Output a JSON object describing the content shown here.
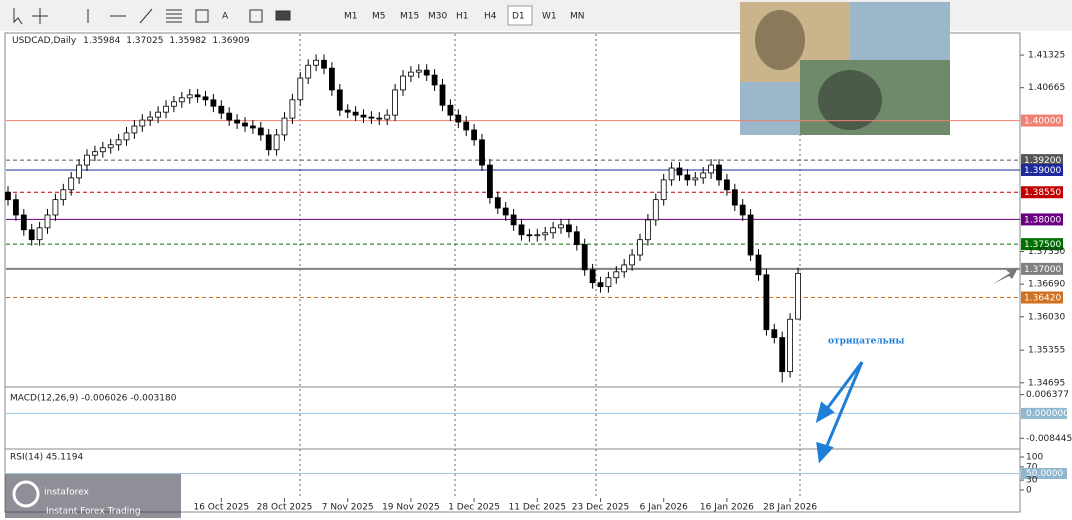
{
  "toolbar": {
    "timeframes": [
      "M1",
      "M5",
      "M15",
      "M30",
      "H1",
      "H4",
      "D1",
      "W1",
      "MN"
    ],
    "active": 6
  },
  "chart": {
    "type": "candlestick",
    "symbol": "USDCAD,Daily",
    "ylim": [
      1.3463,
      1.4163
    ],
    "yticks": [
      {
        "value": 1.41325,
        "label": "1.41325"
      },
      {
        "value": 1.40665,
        "label": "1.40665"
      },
      {
        "value": 1.3735,
        "label": "1.37350"
      },
      {
        "value": 1.3669,
        "label": "1.36690"
      },
      {
        "value": 1.3603,
        "label": "1.36030"
      },
      {
        "value": 1.35355,
        "label": "1.35355"
      },
      {
        "value": 1.34695,
        "label": "1.34695"
      }
    ],
    "levels": [
      {
        "value": 1.4,
        "label": "1.40000",
        "color": "#f08070",
        "dash": false
      },
      {
        "value": 1.392,
        "label": "1.39200",
        "color": "#555555",
        "dash": true
      },
      {
        "value": 1.39,
        "label": "1.39000",
        "color": "#1c2a9c",
        "dash": false
      },
      {
        "value": 1.3855,
        "label": "1.38550",
        "color": "#c00000",
        "dash": true
      },
      {
        "value": 1.38,
        "label": "1.38000",
        "color": "#6a0080",
        "dash": false
      },
      {
        "value": 1.375,
        "label": "1.37500",
        "color": "#007000",
        "dash": true
      },
      {
        "value": 1.37,
        "label": "1.37000",
        "color": "#808080",
        "dash": false
      },
      {
        "value": 1.3642,
        "label": "1.36420",
        "color": "#d07020",
        "dash": true
      }
    ],
    "categories": [
      null,
      null,
      null,
      null,
      null,
      null,
      null,
      null,
      null,
      null,
      null,
      null,
      null,
      null,
      null,
      null,
      null,
      null,
      null,
      null,
      null,
      null,
      null,
      null,
      null,
      null,
      null,
      "16 Oct 2025",
      null,
      null,
      null,
      null,
      null,
      null,
      null,
      "28 Oct 2025",
      null,
      null,
      null,
      null,
      null,
      null,
      null,
      "7 Nov 2025",
      null,
      null,
      null,
      null,
      null,
      null,
      null,
      "19 Nov 2025",
      null,
      null,
      null,
      null,
      null,
      null,
      null,
      "1 Dec 2025",
      null,
      null,
      null,
      null,
      null,
      null,
      null,
      "11 Dec 2025",
      null,
      null,
      null,
      null,
      null,
      null,
      null,
      "23 Dec 2025",
      null,
      null,
      null,
      null,
      null,
      null,
      null,
      "6 Jan 2026",
      null,
      null,
      null,
      null,
      null,
      null,
      null,
      "16 Jan 2026",
      null,
      null,
      null,
      null,
      null,
      null,
      null,
      "28 Jan 2026",
      null
    ],
    "candles": [
      [
        1.3855,
        1.3867,
        1.3828,
        1.384
      ],
      [
        1.384,
        1.3852,
        1.3797,
        1.3809
      ],
      [
        1.3809,
        1.3821,
        1.3767,
        1.3779
      ],
      [
        1.3779,
        1.3791,
        1.3747,
        1.3759
      ],
      [
        1.3759,
        1.3795,
        1.3747,
        1.3783
      ],
      [
        1.3783,
        1.3821,
        1.3771,
        1.3809
      ],
      [
        1.3809,
        1.3852,
        1.3797,
        1.384
      ],
      [
        1.384,
        1.3872,
        1.3828,
        1.386
      ],
      [
        1.386,
        1.3896,
        1.3848,
        1.3884
      ],
      [
        1.3884,
        1.3922,
        1.3872,
        1.391
      ],
      [
        1.391,
        1.3942,
        1.3898,
        1.393
      ],
      [
        1.393,
        1.3949,
        1.3918,
        1.3937
      ],
      [
        1.3937,
        1.3957,
        1.3925,
        1.3945
      ],
      [
        1.3945,
        1.3963,
        1.3933,
        1.3951
      ],
      [
        1.3951,
        1.3973,
        1.3939,
        1.3961
      ],
      [
        1.3961,
        1.3987,
        1.3949,
        1.3975
      ],
      [
        1.3975,
        1.4001,
        1.3963,
        1.3989
      ],
      [
        1.3989,
        1.4013,
        1.3977,
        1.4001
      ],
      [
        1.4001,
        1.4019,
        1.3989,
        1.4007
      ],
      [
        1.4007,
        1.4029,
        1.3995,
        1.4017
      ],
      [
        1.4017,
        1.4041,
        1.4005,
        1.4029
      ],
      [
        1.4029,
        1.405,
        1.4017,
        1.4038
      ],
      [
        1.4038,
        1.4058,
        1.4026,
        1.4046
      ],
      [
        1.4046,
        1.4064,
        1.4034,
        1.4052
      ],
      [
        1.4052,
        1.4064,
        1.4036,
        1.4048
      ],
      [
        1.4048,
        1.406,
        1.403,
        1.4042
      ],
      [
        1.4042,
        1.4054,
        1.4017,
        1.4029
      ],
      [
        1.4029,
        1.4041,
        1.4003,
        1.4015
      ],
      [
        1.4015,
        1.4027,
        1.3989,
        1.4001
      ],
      [
        1.4001,
        1.4013,
        1.3983,
        1.3995
      ],
      [
        1.3995,
        1.4007,
        1.3977,
        1.3989
      ],
      [
        1.3989,
        1.4001,
        1.3973,
        1.3985
      ],
      [
        1.3985,
        1.3997,
        1.3959,
        1.3971
      ],
      [
        1.3971,
        1.3983,
        1.3929,
        1.3941
      ],
      [
        1.3941,
        1.3983,
        1.3929,
        1.3971
      ],
      [
        1.3971,
        1.4017,
        1.3959,
        1.4005
      ],
      [
        1.4005,
        1.4054,
        1.3993,
        1.4042
      ],
      [
        1.4042,
        1.4098,
        1.403,
        1.4086
      ],
      [
        1.4086,
        1.4124,
        1.4074,
        1.4112
      ],
      [
        1.4112,
        1.4134,
        1.41,
        1.4122
      ],
      [
        1.4122,
        1.4134,
        1.4094,
        1.4106
      ],
      [
        1.4106,
        1.4118,
        1.405,
        1.4062
      ],
      [
        1.4062,
        1.4074,
        1.4009,
        1.4021
      ],
      [
        1.4021,
        1.4033,
        1.4005,
        1.4017
      ],
      [
        1.4017,
        1.4029,
        1.3999,
        1.4011
      ],
      [
        1.4011,
        1.4023,
        1.3995,
        1.4007
      ],
      [
        1.4007,
        1.4019,
        1.3993,
        1.4005
      ],
      [
        1.4005,
        1.4017,
        1.3991,
        1.4003
      ],
      [
        1.4003,
        1.4023,
        1.3991,
        1.4011
      ],
      [
        1.4011,
        1.4074,
        1.3999,
        1.4062
      ],
      [
        1.4062,
        1.4102,
        1.405,
        1.409
      ],
      [
        1.409,
        1.411,
        1.4078,
        1.4098
      ],
      [
        1.4098,
        1.4114,
        1.4086,
        1.4102
      ],
      [
        1.4102,
        1.4114,
        1.408,
        1.4092
      ],
      [
        1.4092,
        1.4104,
        1.406,
        1.4072
      ],
      [
        1.4072,
        1.4084,
        1.4019,
        1.4031
      ],
      [
        1.4031,
        1.4043,
        1.3999,
        1.4011
      ],
      [
        1.4011,
        1.4023,
        1.3985,
        1.3997
      ],
      [
        1.3997,
        1.4009,
        1.3969,
        1.3981
      ],
      [
        1.3981,
        1.3993,
        1.3949,
        1.3961
      ],
      [
        1.3961,
        1.3973,
        1.3898,
        1.391
      ],
      [
        1.391,
        1.3922,
        1.3832,
        1.3844
      ],
      [
        1.3844,
        1.3856,
        1.3811,
        1.3823
      ],
      [
        1.3823,
        1.3835,
        1.3797,
        1.3809
      ],
      [
        1.3809,
        1.3821,
        1.3777,
        1.3789
      ],
      [
        1.3789,
        1.3801,
        1.3757,
        1.3769
      ],
      [
        1.3769,
        1.3781,
        1.3755,
        1.3767
      ],
      [
        1.3767,
        1.3781,
        1.3755,
        1.3769
      ],
      [
        1.3769,
        1.3785,
        1.3757,
        1.3773
      ],
      [
        1.3773,
        1.3795,
        1.3761,
        1.3783
      ],
      [
        1.3783,
        1.3801,
        1.3771,
        1.3789
      ],
      [
        1.3789,
        1.3801,
        1.3763,
        1.3775
      ],
      [
        1.3775,
        1.3787,
        1.3737,
        1.3749
      ],
      [
        1.3749,
        1.3761,
        1.3686,
        1.3698
      ],
      [
        1.3698,
        1.371,
        1.366,
        1.3672
      ],
      [
        1.3672,
        1.3684,
        1.3652,
        1.3664
      ],
      [
        1.3664,
        1.3694,
        1.3652,
        1.3682
      ],
      [
        1.3682,
        1.3706,
        1.367,
        1.3694
      ],
      [
        1.3694,
        1.372,
        1.3682,
        1.3708
      ],
      [
        1.3708,
        1.374,
        1.3696,
        1.3728
      ],
      [
        1.3728,
        1.3771,
        1.3716,
        1.3759
      ],
      [
        1.3759,
        1.3811,
        1.3747,
        1.3799
      ],
      [
        1.3799,
        1.3852,
        1.3787,
        1.384
      ],
      [
        1.384,
        1.3892,
        1.3828,
        1.388
      ],
      [
        1.388,
        1.3916,
        1.3868,
        1.3904
      ],
      [
        1.3904,
        1.3916,
        1.3878,
        1.389
      ],
      [
        1.389,
        1.3902,
        1.3868,
        1.388
      ],
      [
        1.388,
        1.3896,
        1.3868,
        1.3884
      ],
      [
        1.3884,
        1.3906,
        1.3872,
        1.3894
      ],
      [
        1.3894,
        1.3922,
        1.3882,
        1.391
      ],
      [
        1.391,
        1.3922,
        1.3868,
        1.388
      ],
      [
        1.388,
        1.3892,
        1.3848,
        1.386
      ],
      [
        1.386,
        1.3872,
        1.3817,
        1.3829
      ],
      [
        1.3829,
        1.3841,
        1.3797,
        1.3809
      ],
      [
        1.3809,
        1.3821,
        1.3716,
        1.3728
      ],
      [
        1.3728,
        1.374,
        1.3676,
        1.3688
      ],
      [
        1.3688,
        1.37,
        1.3565,
        1.3577
      ],
      [
        1.3577,
        1.3589,
        1.3549,
        1.3561
      ],
      [
        1.3561,
        1.3573,
        1.347,
        1.3492
      ],
      [
        1.3492,
        1.361,
        1.348,
        1.3598
      ],
      [
        1.35984,
        1.37025,
        1.35982,
        1.36909
      ]
    ]
  },
  "macd": {
    "header": "MACD(12,26,9) -0.006026 -0.003180",
    "ylim": [
      -0.0097,
      0.0076
    ],
    "yticks": [
      0.006377,
      {
        "value": 0,
        "label": "0.000000"
      },
      -0.008445
    ]
  },
  "rsi": {
    "header": "RSI(14) 45.1194",
    "ylim": [
      0,
      100
    ],
    "yticks": [
      100,
      70,
      {
        "value": 50,
        "label": "50.0000"
      },
      30,
      0
    ]
  },
  "annotation": "отрицательны",
  "logo": {
    "name": "instaforex",
    "tagline": "Instant Forex Trading"
  }
}
